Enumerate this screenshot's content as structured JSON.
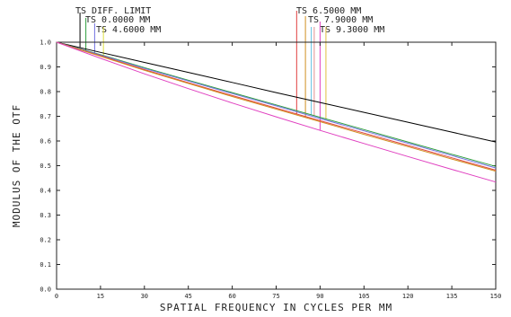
{
  "chart_data": {
    "type": "line",
    "title": "",
    "xlabel": "SPATIAL FREQUENCY IN CYCLES PER MM",
    "ylabel": "MODULUS OF THE OTF",
    "xlim": [
      0,
      150
    ],
    "ylim": [
      0,
      1
    ],
    "x_ticks": [
      "0",
      "15",
      "30",
      "45",
      "60",
      "75",
      "90",
      "105",
      "120",
      "135",
      "150"
    ],
    "y_ticks": [
      "0.0",
      "0.1",
      "0.2",
      "0.3",
      "0.4",
      "0.5",
      "0.6",
      "0.7",
      "0.8",
      "0.9",
      "1.0"
    ],
    "grid": false,
    "x": [
      0,
      15,
      30,
      45,
      60,
      75,
      90,
      105,
      120,
      135,
      150
    ],
    "series": [
      {
        "name": "TS DIFF. LIMIT",
        "color": "#000000",
        "values": [
          1.0,
          0.959,
          0.918,
          0.878,
          0.837,
          0.796,
          0.756,
          0.716,
          0.676,
          0.636,
          0.596
        ],
        "marker_x": 8
      },
      {
        "name": "TS 0.0000 MM",
        "color": "#2f9f3f",
        "values": [
          1.0,
          0.95,
          0.897,
          0.846,
          0.796,
          0.746,
          0.696,
          0.646,
          0.596,
          0.546,
          0.497
        ],
        "marker_x": 10
      },
      {
        "name": "TS 4.6000 MM",
        "color": "#7070e0",
        "values": [
          1.0,
          0.948,
          0.894,
          0.843,
          0.792,
          0.742,
          0.691,
          0.641,
          0.591,
          0.541,
          0.491
        ],
        "marker_x": 13
      },
      {
        "name": "TS 6.5000 MM",
        "color": "#e04040",
        "values": [
          1.0,
          0.945,
          0.889,
          0.836,
          0.784,
          0.733,
          0.682,
          0.632,
          0.582,
          0.532,
          0.482
        ],
        "marker_x": 82
      },
      {
        "name": "TS 7.9000 MM",
        "color": "#d09020",
        "values": [
          1.0,
          0.943,
          0.886,
          0.833,
          0.78,
          0.729,
          0.678,
          0.627,
          0.577,
          0.527,
          0.478
        ],
        "marker_x": 85
      },
      {
        "name": "TS 9.3000 MM",
        "color": "#e040c0",
        "values": [
          1.0,
          0.935,
          0.872,
          0.812,
          0.754,
          0.698,
          0.643,
          0.59,
          0.537,
          0.485,
          0.434
        ],
        "marker_x": 90
      }
    ],
    "extra_marker_colors": [
      "#e0e040",
      "#60c0e0",
      "#e09090",
      "#e0c040"
    ],
    "extra_marker_x": [
      16,
      87,
      88,
      92
    ]
  }
}
